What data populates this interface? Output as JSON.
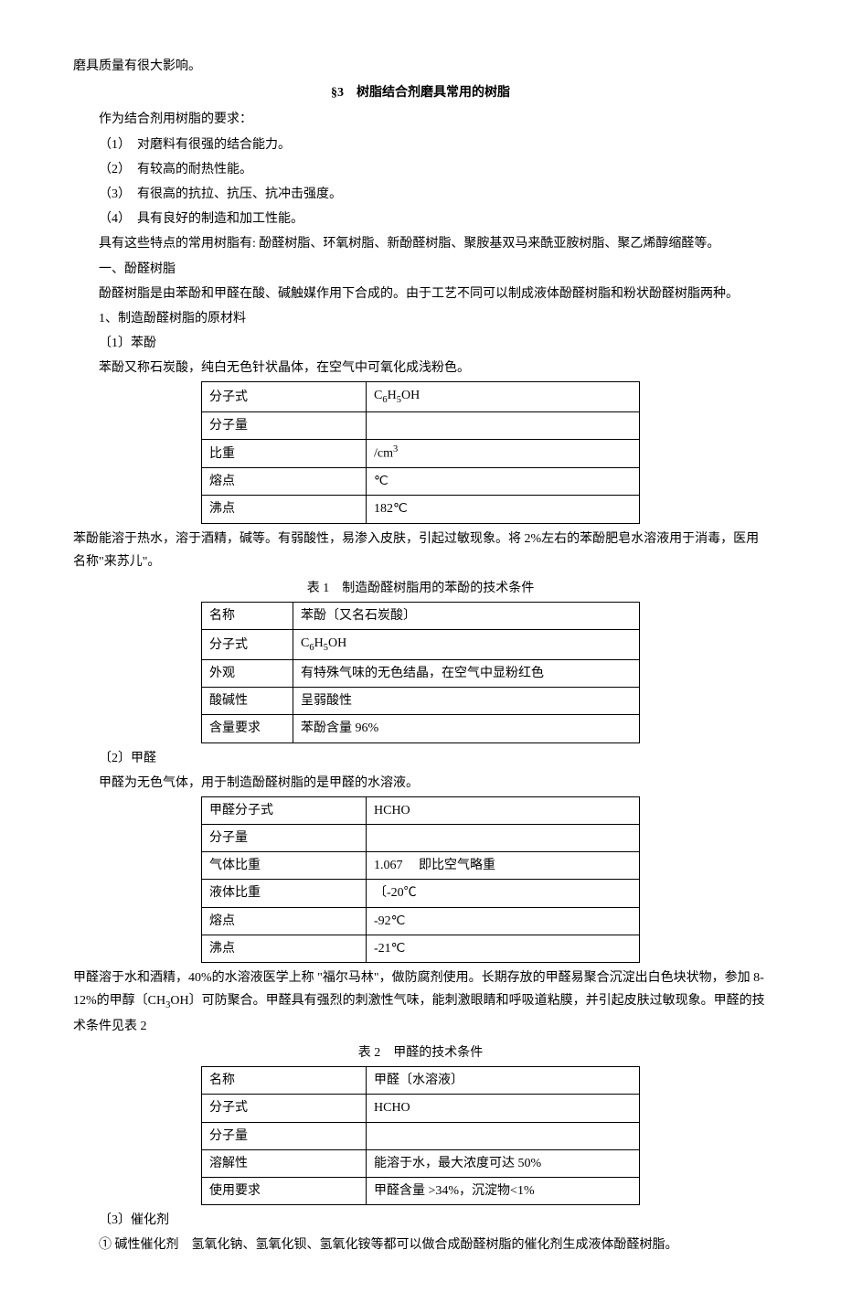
{
  "intro": {
    "line1": "磨具质量有很大影响。"
  },
  "section3": {
    "title": "§3　树脂结合剂磨具常用的树脂",
    "lead": "作为结合剂用树脂的要求：",
    "req1": "（1）　对磨料有很强的结合能力。",
    "req2": "（2）　有较高的耐热性能。",
    "req3": "（3）　有很高的抗拉、抗压、抗冲击强度。",
    "req4": "（4）　具有良好的制造和加工性能。",
    "resins": "具有这些特点的常用树脂有: 酚醛树脂、环氧树脂、新酚醛树脂、聚胺基双马来酰亚胺树脂、聚乙烯醇缩醛等。",
    "h1": "一、酚醛树脂",
    "desc1": "酚醛树脂是由苯酚和甲醛在酸、碱触媒作用下合成的。由于工艺不同可以制成液体酚醛树脂和粉状酚醛树脂两种。",
    "h1_1": "1、制造酚醛树脂的原材料",
    "item1": "〔1〕苯酚",
    "phenol_desc": "苯酚又称石炭酸，纯白无色针状晶体，在空气中可氧化成浅粉色。"
  },
  "table1": {
    "r1c1": "分子式",
    "r1c2_a": "C",
    "r1c2_b": "6",
    "r1c2_c": "H",
    "r1c2_d": "5",
    "r1c2_e": "OH",
    "r2c1": "分子量",
    "r2c2": "",
    "r3c1": "比重",
    "r3c2_a": "/cm",
    "r3c2_b": "3",
    "r4c1": "熔点",
    "r4c2": "℃",
    "r5c1": "沸点",
    "r5c2": "182℃"
  },
  "phenol_after": "苯酚能溶于热水，溶于酒精，碱等。有弱酸性，易渗入皮肤，引起过敏现象。将 2%左右的苯酚肥皂水溶液用于消毒，医用名称\"来苏儿\"。",
  "table1_caption": "表 1　制造酚醛树脂用的苯酚的技术条件",
  "table2": {
    "r1c1": "名称",
    "r1c2": "苯酚〔又名石炭酸〕",
    "r2c1": "分子式",
    "r2c2_a": "C",
    "r2c2_b": "6",
    "r2c2_c": "H",
    "r2c2_d": "5",
    "r2c2_e": "OH",
    "r3c1": "外观",
    "r3c2": "有特殊气味的无色结晶，在空气中显粉红色",
    "r4c1": "酸碱性",
    "r4c2": "呈弱酸性",
    "r5c1": "含量要求",
    "r5c2": "苯酚含量 96%"
  },
  "item2": "〔2〕甲醛",
  "formaldehyde_desc": "甲醛为无色气体，用于制造酚醛树脂的是甲醛的水溶液。",
  "table3": {
    "r1c1": "甲醛分子式",
    "r1c2": "HCHO",
    "r2c1": "分子量",
    "r2c2": "",
    "r3c1": "气体比重",
    "r3c2": "1.067　 即比空气略重",
    "r4c1": "液体比重",
    "r4c2": "〔-20℃",
    "r5c1": "熔点",
    "r5c2": "-92℃",
    "r6c1": "沸点",
    "r6c2": "-21℃"
  },
  "formaldehyde_after_a": "甲醛溶于水和酒精，40%的水溶液医学上称 \"福尔马林\"，做防腐剂使用。长期存放的甲醛易聚合沉淀出白色块状物，参加 8-12%的甲醇〔CH",
  "formaldehyde_after_b": "3",
  "formaldehyde_after_c": "OH〕可防聚合。甲醛具有强烈的刺激性气味，能刺激眼睛和呼吸道粘膜，并引起皮肤过敏现象。甲醛的技术条件见表 2",
  "table2_caption": "表 2　甲醛的技术条件",
  "table4": {
    "r1c1": "名称",
    "r1c2": "甲醛〔水溶液〕",
    "r2c1": "分子式",
    "r2c2": "HCHO",
    "r3c1": "分子量",
    "r3c2": "",
    "r4c1": "溶解性",
    "r4c2": "能溶于水，最大浓度可达 50%",
    "r5c1": "使用要求",
    "r5c2": "甲醛含量 >34%，沉淀物<1%"
  },
  "item3": "〔3〕催化剂",
  "catalyst": "① 碱性催化剂　氢氧化钠、氢氧化钡、氢氧化铵等都可以做合成酚醛树脂的催化剂生成液体酚醛树脂。"
}
